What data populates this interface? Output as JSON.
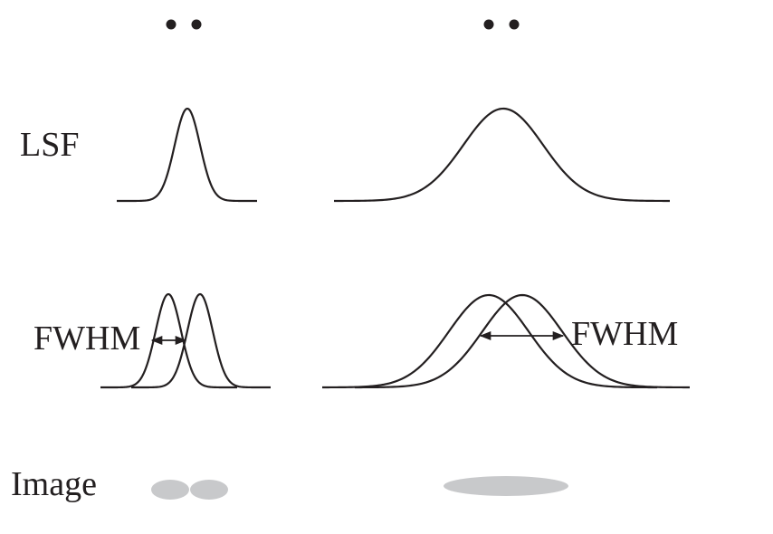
{
  "labels": {
    "lsf": "LSF",
    "image": "Image",
    "fwhm_left": "FWHM",
    "fwhm_right": "FWHM"
  },
  "colors": {
    "ink": "#231f20",
    "blob": "#c8c9cb"
  }
}
